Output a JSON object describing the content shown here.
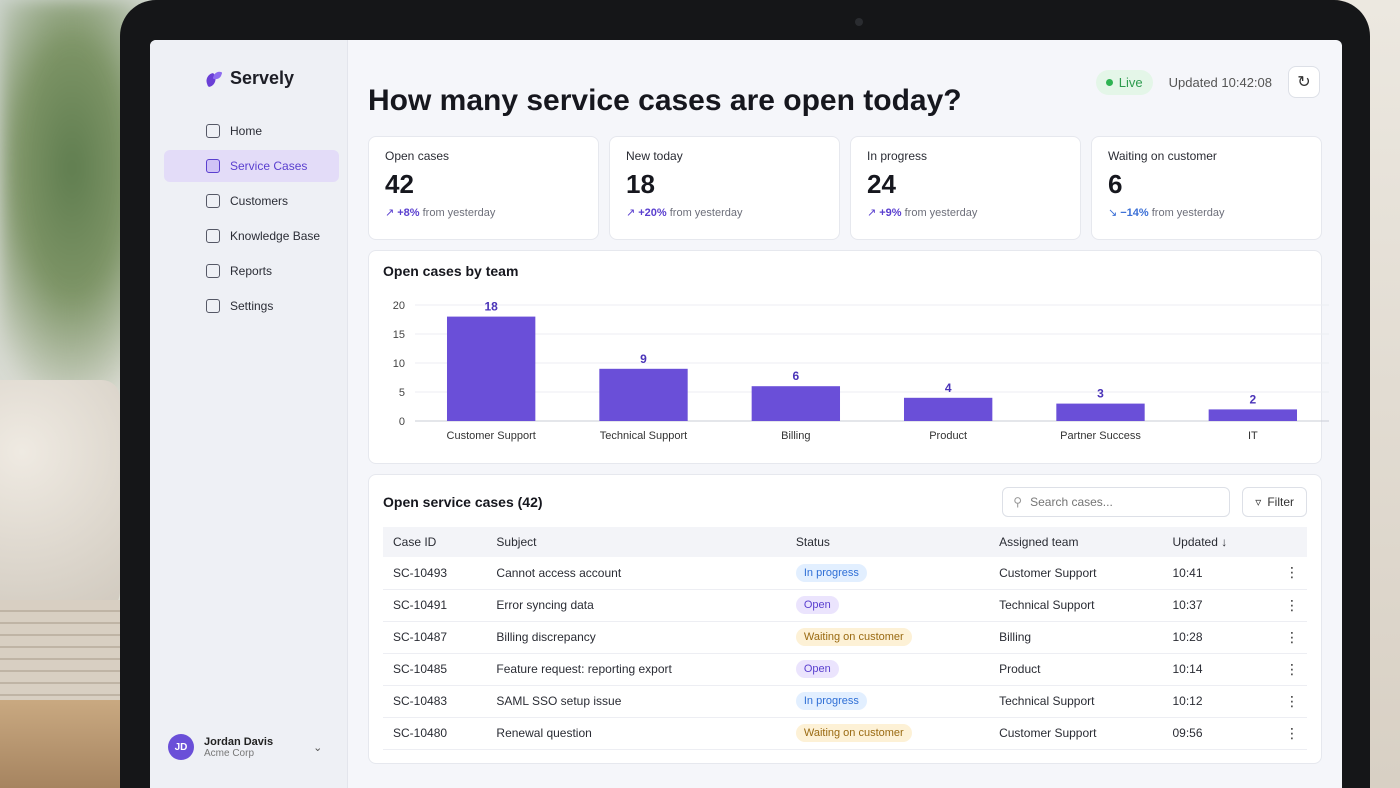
{
  "app": {
    "name": "Servely"
  },
  "sidebar": {
    "items": [
      {
        "label": "Home",
        "icon": "home-icon",
        "active": false
      },
      {
        "label": "Service Cases",
        "icon": "cases-icon",
        "active": true
      },
      {
        "label": "Customers",
        "icon": "users-icon",
        "active": false
      },
      {
        "label": "Knowledge Base",
        "icon": "book-icon",
        "active": false
      },
      {
        "label": "Reports",
        "icon": "chart-icon",
        "active": false
      },
      {
        "label": "Settings",
        "icon": "gear-icon",
        "active": false
      }
    ],
    "user": {
      "initials": "JD",
      "name": "Jordan Davis",
      "org": "Acme Corp"
    }
  },
  "header": {
    "title": "How many service cases are open today?",
    "live_label": "Live",
    "updated_label": "Updated 10:42:08"
  },
  "kpis": [
    {
      "label": "Open cases",
      "value": "42",
      "change": "+8%",
      "suffix": "from yesterday",
      "direction": "up"
    },
    {
      "label": "New today",
      "value": "18",
      "change": "+20%",
      "suffix": "from yesterday",
      "direction": "up"
    },
    {
      "label": "In progress",
      "value": "24",
      "change": "+9%",
      "suffix": "from yesterday",
      "direction": "up"
    },
    {
      "label": "Waiting on customer",
      "value": "6",
      "change": "−14%",
      "suffix": "from yesterday",
      "direction": "down"
    }
  ],
  "chart_title": "Open cases by team",
  "chart_data": {
    "type": "bar",
    "title": "Open cases by team",
    "categories": [
      "Customer Support",
      "Technical Support",
      "Billing",
      "Product",
      "Partner Success",
      "IT"
    ],
    "values": [
      18,
      9,
      6,
      4,
      3,
      2
    ],
    "yticks": [
      0,
      5,
      10,
      15,
      20
    ],
    "ylim": [
      0,
      20
    ],
    "grid": true,
    "bar_color": "#6a4fd8"
  },
  "table": {
    "title": "Open service cases (42)",
    "search_placeholder": "Search cases...",
    "filter_label": "Filter",
    "columns": [
      "Case ID",
      "Subject",
      "Status",
      "Assigned team",
      "Updated ↓"
    ],
    "rows": [
      {
        "id": "SC-10493",
        "subject": "Cannot access account",
        "status": "In progress",
        "status_kind": "in-progress",
        "team": "Customer Support",
        "updated": "10:41"
      },
      {
        "id": "SC-10491",
        "subject": "Error syncing data",
        "status": "Open",
        "status_kind": "open",
        "team": "Technical Support",
        "updated": "10:37"
      },
      {
        "id": "SC-10487",
        "subject": "Billing discrepancy",
        "status": "Waiting on customer",
        "status_kind": "waiting",
        "team": "Billing",
        "updated": "10:28"
      },
      {
        "id": "SC-10485",
        "subject": "Feature request: reporting export",
        "status": "Open",
        "status_kind": "open",
        "team": "Product",
        "updated": "10:14"
      },
      {
        "id": "SC-10483",
        "subject": "SAML SSO setup issue",
        "status": "In progress",
        "status_kind": "in-progress",
        "team": "Technical Support",
        "updated": "10:12"
      },
      {
        "id": "SC-10480",
        "subject": "Renewal question",
        "status": "Waiting on customer",
        "status_kind": "waiting",
        "team": "Customer Support",
        "updated": "09:56"
      }
    ]
  }
}
